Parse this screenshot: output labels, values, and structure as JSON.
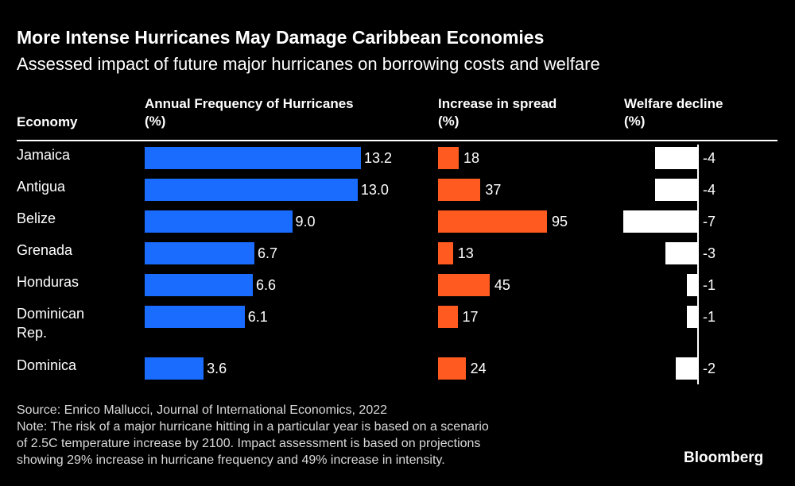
{
  "title": "More Intense Hurricanes May Damage Caribbean Economies",
  "subtitle": "Assessed impact of future major hurricanes on borrowing costs and welfare",
  "headers": {
    "economy": "Economy",
    "freq_line1": "Annual Frequency of Hurricanes",
    "freq_line2": "(%)",
    "spread_line1": "Increase in spread",
    "spread_line2": "(%)",
    "welfare_line1": "Welfare decline",
    "welfare_line2": "(%)"
  },
  "colors": {
    "frequency": "#1a6cff",
    "spread": "#ff5a1f",
    "welfare": "#ffffff",
    "background": "#000000"
  },
  "chart_data": {
    "type": "bar",
    "orientation": "horizontal",
    "categories": [
      "Jamaica",
      "Antigua",
      "Belize",
      "Grenada",
      "Honduras",
      "Dominican Rep.",
      "Dominica"
    ],
    "category_lines": [
      [
        "Jamaica"
      ],
      [
        "Antigua"
      ],
      [
        "Belize"
      ],
      [
        "Grenada"
      ],
      [
        "Honduras"
      ],
      [
        "Dominican",
        "Rep."
      ],
      [
        "Dominica"
      ]
    ],
    "series": [
      {
        "name": "Annual Frequency of Hurricanes (%)",
        "key": "freq",
        "values": [
          13.2,
          13.0,
          9.0,
          6.7,
          6.6,
          6.1,
          3.6
        ],
        "labels": [
          "13.2",
          "13.0",
          "9.0",
          "6.7",
          "6.6",
          "6.1",
          "3.6"
        ]
      },
      {
        "name": "Increase in spread (%)",
        "key": "spread",
        "values": [
          18,
          37,
          95,
          13,
          45,
          17,
          24
        ],
        "labels": [
          "18",
          "37",
          "95",
          "13",
          "45",
          "17",
          "24"
        ]
      },
      {
        "name": "Welfare decline (%)",
        "key": "welfare",
        "values": [
          -4,
          -4,
          -7,
          -3,
          -1,
          -1,
          -2
        ],
        "labels": [
          "-4",
          "-4",
          "-7",
          "-3",
          "-1",
          "-1",
          "-2"
        ]
      }
    ]
  },
  "footer": {
    "source": "Source: Enrico Mallucci, Journal of International Economics, 2022",
    "note_line1": "Note: The risk of a major hurricane hitting in a particular year is based on a scenario",
    "note_line2": "of 2.5C temperature increase by 2100. Impact assessment is based on projections",
    "note_line3": "showing 29% increase in hurricane frequency and 49% increase in intensity."
  },
  "brand": "Bloomberg"
}
